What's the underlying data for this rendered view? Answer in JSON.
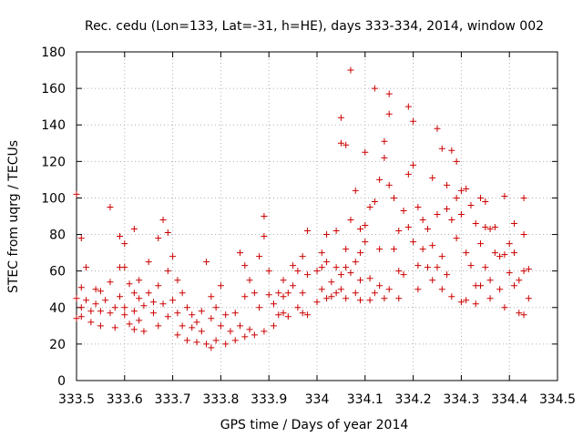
{
  "chart_data": {
    "type": "scatter",
    "title": "Rec. cedu (Lon=133, Lat=-31, h=HE), days 333-334, 2014, window 002",
    "xlabel": "GPS time / Days of year 2014",
    "ylabel": "STEC from uqrg / TECUs",
    "xlim": [
      333.5,
      334.5
    ],
    "ylim": [
      0,
      180
    ],
    "xticks": [
      333.5,
      333.6,
      333.7,
      333.8,
      333.9,
      334,
      334.1,
      334.2,
      334.3,
      334.4,
      334.5
    ],
    "xtick_labels": [
      "333.5",
      "333.6",
      "333.7",
      "333.8",
      "333.9",
      "334",
      "334.1",
      "334.2",
      "334.3",
      "334.4",
      "334.5"
    ],
    "yticks": [
      0,
      20,
      40,
      60,
      80,
      100,
      120,
      140,
      160,
      180
    ],
    "ytick_labels": [
      "0",
      "20",
      "40",
      "60",
      "80",
      "100",
      "120",
      "140",
      "160",
      "180"
    ],
    "grid": true,
    "marker": "+",
    "color": "#cc0000",
    "series": [
      {
        "name": "STEC",
        "points": [
          [
            333.5,
            102
          ],
          [
            333.5,
            34
          ],
          [
            333.5,
            45
          ],
          [
            333.51,
            78
          ],
          [
            333.51,
            51
          ],
          [
            333.51,
            40
          ],
          [
            333.51,
            35
          ],
          [
            333.52,
            62
          ],
          [
            333.52,
            44
          ],
          [
            333.53,
            38
          ],
          [
            333.53,
            32
          ],
          [
            333.54,
            50
          ],
          [
            333.54,
            42
          ],
          [
            333.55,
            49
          ],
          [
            333.55,
            38
          ],
          [
            333.55,
            30
          ],
          [
            333.56,
            44
          ],
          [
            333.57,
            95
          ],
          [
            333.57,
            54
          ],
          [
            333.57,
            37
          ],
          [
            333.58,
            40
          ],
          [
            333.58,
            29
          ],
          [
            333.59,
            79
          ],
          [
            333.59,
            62
          ],
          [
            333.59,
            46
          ],
          [
            333.6,
            75
          ],
          [
            333.6,
            62
          ],
          [
            333.6,
            40
          ],
          [
            333.6,
            36
          ],
          [
            333.61,
            53
          ],
          [
            333.61,
            31
          ],
          [
            333.62,
            83
          ],
          [
            333.62,
            48
          ],
          [
            333.62,
            38
          ],
          [
            333.62,
            28
          ],
          [
            333.63,
            55
          ],
          [
            333.63,
            45
          ],
          [
            333.63,
            33
          ],
          [
            333.64,
            41
          ],
          [
            333.64,
            27
          ],
          [
            333.65,
            65
          ],
          [
            333.65,
            48
          ],
          [
            333.66,
            43
          ],
          [
            333.66,
            37
          ],
          [
            333.67,
            78
          ],
          [
            333.67,
            52
          ],
          [
            333.67,
            30
          ],
          [
            333.68,
            88
          ],
          [
            333.68,
            42
          ],
          [
            333.69,
            81
          ],
          [
            333.69,
            60
          ],
          [
            333.69,
            35
          ],
          [
            333.7,
            68
          ],
          [
            333.7,
            44
          ],
          [
            333.71,
            55
          ],
          [
            333.71,
            37
          ],
          [
            333.71,
            25
          ],
          [
            333.72,
            48
          ],
          [
            333.72,
            30
          ],
          [
            333.73,
            40
          ],
          [
            333.73,
            22
          ],
          [
            333.74,
            36
          ],
          [
            333.74,
            29
          ],
          [
            333.75,
            32
          ],
          [
            333.75,
            21
          ],
          [
            333.76,
            38
          ],
          [
            333.76,
            27
          ],
          [
            333.77,
            65
          ],
          [
            333.77,
            20
          ],
          [
            333.78,
            46
          ],
          [
            333.78,
            34
          ],
          [
            333.78,
            18
          ],
          [
            333.79,
            40
          ],
          [
            333.79,
            22
          ],
          [
            333.8,
            52
          ],
          [
            333.8,
            30
          ],
          [
            333.81,
            36
          ],
          [
            333.81,
            20
          ],
          [
            333.82,
            27
          ],
          [
            333.83,
            37
          ],
          [
            333.83,
            22
          ],
          [
            333.84,
            70
          ],
          [
            333.84,
            30
          ],
          [
            333.85,
            63
          ],
          [
            333.85,
            46
          ],
          [
            333.85,
            24
          ],
          [
            333.86,
            55
          ],
          [
            333.86,
            28
          ],
          [
            333.87,
            48
          ],
          [
            333.87,
            25
          ],
          [
            333.88,
            68
          ],
          [
            333.88,
            40
          ],
          [
            333.89,
            90
          ],
          [
            333.89,
            79
          ],
          [
            333.89,
            27
          ],
          [
            333.9,
            60
          ],
          [
            333.9,
            47
          ],
          [
            333.91,
            42
          ],
          [
            333.91,
            30
          ],
          [
            333.92,
            48
          ],
          [
            333.92,
            36
          ],
          [
            333.93,
            55
          ],
          [
            333.93,
            46
          ],
          [
            333.93,
            37
          ],
          [
            333.94,
            48
          ],
          [
            333.94,
            35
          ],
          [
            333.95,
            63
          ],
          [
            333.95,
            52
          ],
          [
            333.96,
            60
          ],
          [
            333.96,
            40
          ],
          [
            333.97,
            68
          ],
          [
            333.97,
            48
          ],
          [
            333.97,
            37
          ],
          [
            333.98,
            82
          ],
          [
            333.98,
            58
          ],
          [
            333.98,
            36
          ],
          [
            334.0,
            60
          ],
          [
            334.0,
            43
          ],
          [
            334.01,
            70
          ],
          [
            334.01,
            62
          ],
          [
            334.01,
            50
          ],
          [
            334.02,
            80
          ],
          [
            334.02,
            65
          ],
          [
            334.02,
            45
          ],
          [
            334.03,
            54
          ],
          [
            334.03,
            46
          ],
          [
            334.04,
            82
          ],
          [
            334.04,
            62
          ],
          [
            334.04,
            48
          ],
          [
            334.05,
            130
          ],
          [
            334.05,
            144
          ],
          [
            334.05,
            58
          ],
          [
            334.05,
            50
          ],
          [
            334.06,
            129
          ],
          [
            334.06,
            72
          ],
          [
            334.06,
            62
          ],
          [
            334.06,
            45
          ],
          [
            334.07,
            170
          ],
          [
            334.07,
            88
          ],
          [
            334.07,
            59
          ],
          [
            334.08,
            104
          ],
          [
            334.08,
            65
          ],
          [
            334.08,
            48
          ],
          [
            334.09,
            83
          ],
          [
            334.09,
            70
          ],
          [
            334.09,
            55
          ],
          [
            334.09,
            44
          ],
          [
            334.1,
            125
          ],
          [
            334.1,
            85
          ],
          [
            334.1,
            76
          ],
          [
            334.11,
            95
          ],
          [
            334.11,
            56
          ],
          [
            334.11,
            44
          ],
          [
            334.12,
            160
          ],
          [
            334.12,
            98
          ],
          [
            334.12,
            48
          ],
          [
            334.13,
            110
          ],
          [
            334.13,
            72
          ],
          [
            334.13,
            52
          ],
          [
            334.14,
            131
          ],
          [
            334.14,
            122
          ],
          [
            334.14,
            45
          ],
          [
            334.15,
            157
          ],
          [
            334.15,
            146
          ],
          [
            334.15,
            107
          ],
          [
            334.15,
            50
          ],
          [
            334.16,
            100
          ],
          [
            334.16,
            72
          ],
          [
            334.17,
            82
          ],
          [
            334.17,
            60
          ],
          [
            334.17,
            45
          ],
          [
            334.18,
            93
          ],
          [
            334.18,
            58
          ],
          [
            334.19,
            150
          ],
          [
            334.19,
            113
          ],
          [
            334.19,
            84
          ],
          [
            334.2,
            142
          ],
          [
            334.2,
            118
          ],
          [
            334.2,
            76
          ],
          [
            334.21,
            95
          ],
          [
            334.21,
            63
          ],
          [
            334.21,
            50
          ],
          [
            334.22,
            88
          ],
          [
            334.22,
            72
          ],
          [
            334.23,
            83
          ],
          [
            334.23,
            62
          ],
          [
            334.24,
            111
          ],
          [
            334.24,
            74
          ],
          [
            334.24,
            55
          ],
          [
            334.25,
            138
          ],
          [
            334.25,
            91
          ],
          [
            334.25,
            62
          ],
          [
            334.26,
            127
          ],
          [
            334.26,
            68
          ],
          [
            334.26,
            50
          ],
          [
            334.27,
            107
          ],
          [
            334.27,
            94
          ],
          [
            334.27,
            58
          ],
          [
            334.28,
            126
          ],
          [
            334.28,
            88
          ],
          [
            334.28,
            46
          ],
          [
            334.29,
            120
          ],
          [
            334.29,
            100
          ],
          [
            334.29,
            78
          ],
          [
            334.3,
            104
          ],
          [
            334.3,
            91
          ],
          [
            334.3,
            43
          ],
          [
            334.31,
            105
          ],
          [
            334.31,
            70
          ],
          [
            334.31,
            44
          ],
          [
            334.32,
            96
          ],
          [
            334.32,
            63
          ],
          [
            334.33,
            86
          ],
          [
            334.33,
            52
          ],
          [
            334.33,
            42
          ],
          [
            334.34,
            100
          ],
          [
            334.34,
            75
          ],
          [
            334.34,
            52
          ],
          [
            334.35,
            98
          ],
          [
            334.35,
            84
          ],
          [
            334.35,
            62
          ],
          [
            334.36,
            83
          ],
          [
            334.36,
            55
          ],
          [
            334.36,
            45
          ],
          [
            334.37,
            84
          ],
          [
            334.37,
            70
          ],
          [
            334.38,
            68
          ],
          [
            334.38,
            50
          ],
          [
            334.39,
            101
          ],
          [
            334.39,
            69
          ],
          [
            334.39,
            40
          ],
          [
            334.4,
            75
          ],
          [
            334.4,
            59
          ],
          [
            334.41,
            86
          ],
          [
            334.41,
            70
          ],
          [
            334.41,
            52
          ],
          [
            334.42,
            55
          ],
          [
            334.42,
            37
          ],
          [
            334.43,
            100
          ],
          [
            334.43,
            80
          ],
          [
            334.43,
            60
          ],
          [
            334.43,
            36
          ],
          [
            334.44,
            61
          ],
          [
            334.44,
            45
          ]
        ]
      }
    ]
  }
}
